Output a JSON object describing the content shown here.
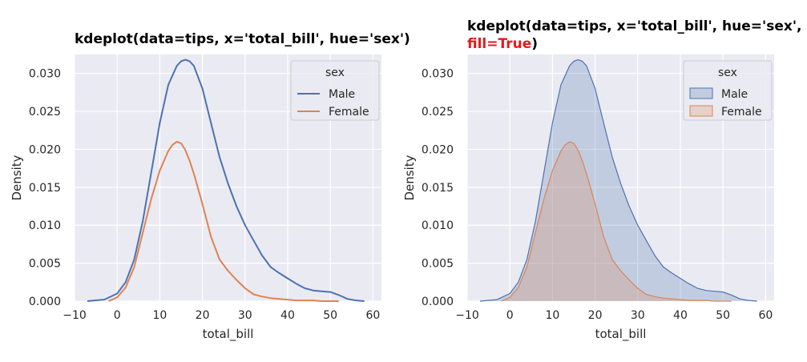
{
  "chart_data": [
    {
      "type": "line",
      "title": "kdeplot(data=tips, x='total_bill', hue='sex')",
      "title_line2_red": "",
      "xlabel": "total_bill",
      "ylabel": "Density",
      "xlim": [
        -10,
        62
      ],
      "ylim": [
        0,
        0.0325
      ],
      "xticks": [
        "−10",
        "0",
        "10",
        "20",
        "30",
        "40",
        "50",
        "60"
      ],
      "xtick_values": [
        -10,
        0,
        10,
        20,
        30,
        40,
        50,
        60
      ],
      "yticks": [
        "0.000",
        "0.005",
        "0.010",
        "0.015",
        "0.020",
        "0.025",
        "0.030"
      ],
      "ytick_values": [
        0,
        0.005,
        0.01,
        0.015,
        0.02,
        0.025,
        0.03
      ],
      "fill": false,
      "grid": true,
      "legend": {
        "title": "sex",
        "position": "top-right"
      },
      "series": [
        {
          "name": "Male",
          "color": "#4c72b0",
          "x": [
            -7,
            -3,
            0,
            2,
            4,
            6,
            8,
            10,
            12,
            14,
            15,
            16,
            17,
            18,
            20,
            22,
            24,
            26,
            28,
            30,
            32,
            34,
            36,
            38,
            40,
            42,
            44,
            46,
            48,
            50,
            52,
            54,
            56,
            58
          ],
          "y": [
            0.0,
            0.0002,
            0.001,
            0.0025,
            0.0055,
            0.0105,
            0.017,
            0.0235,
            0.0285,
            0.031,
            0.0316,
            0.0318,
            0.0316,
            0.031,
            0.028,
            0.0235,
            0.019,
            0.0155,
            0.0125,
            0.01,
            0.008,
            0.006,
            0.0045,
            0.0037,
            0.003,
            0.0023,
            0.0017,
            0.0014,
            0.0013,
            0.0012,
            0.0008,
            0.0003,
            0.0001,
            0.0
          ]
        },
        {
          "name": "Female",
          "color": "#dd8452",
          "x": [
            -2,
            0,
            2,
            4,
            6,
            8,
            10,
            12,
            13,
            14,
            15,
            16,
            17,
            18,
            20,
            22,
            24,
            26,
            28,
            30,
            32,
            34,
            36,
            38,
            40,
            42,
            44,
            46,
            48,
            50,
            52
          ],
          "y": [
            0.0,
            0.0005,
            0.0018,
            0.0045,
            0.009,
            0.0135,
            0.0172,
            0.0198,
            0.0206,
            0.021,
            0.0208,
            0.0199,
            0.0185,
            0.0168,
            0.0128,
            0.0085,
            0.0055,
            0.004,
            0.0028,
            0.0017,
            0.0009,
            0.0006,
            0.0004,
            0.0003,
            0.0002,
            0.0001,
            0.0001,
            0.0001,
            0.0,
            0.0,
            0.0
          ]
        }
      ]
    },
    {
      "type": "area",
      "title": "kdeplot(data=tips, x='total_bill', hue='sex',",
      "title_line2_red": "fill=True",
      "title_line2_close": ")",
      "xlabel": "total_bill",
      "ylabel": "Density",
      "xlim": [
        -10,
        62
      ],
      "ylim": [
        0,
        0.0325
      ],
      "xticks": [
        "−10",
        "0",
        "10",
        "20",
        "30",
        "40",
        "50",
        "60"
      ],
      "xtick_values": [
        -10,
        0,
        10,
        20,
        30,
        40,
        50,
        60
      ],
      "yticks": [
        "0.000",
        "0.005",
        "0.010",
        "0.015",
        "0.020",
        "0.025",
        "0.030"
      ],
      "ytick_values": [
        0,
        0.005,
        0.01,
        0.015,
        0.02,
        0.025,
        0.03
      ],
      "fill": true,
      "grid": true,
      "legend": {
        "title": "sex",
        "position": "top-right"
      },
      "series": [
        {
          "name": "Male",
          "color": "#4c72b0",
          "x": [
            -7,
            -3,
            0,
            2,
            4,
            6,
            8,
            10,
            12,
            14,
            15,
            16,
            17,
            18,
            20,
            22,
            24,
            26,
            28,
            30,
            32,
            34,
            36,
            38,
            40,
            42,
            44,
            46,
            48,
            50,
            52,
            54,
            56,
            58
          ],
          "y": [
            0.0,
            0.0002,
            0.001,
            0.0025,
            0.0055,
            0.0105,
            0.017,
            0.0235,
            0.0285,
            0.031,
            0.0316,
            0.0318,
            0.0316,
            0.031,
            0.028,
            0.0235,
            0.019,
            0.0155,
            0.0125,
            0.01,
            0.008,
            0.006,
            0.0045,
            0.0037,
            0.003,
            0.0023,
            0.0017,
            0.0014,
            0.0013,
            0.0012,
            0.0008,
            0.0003,
            0.0001,
            0.0
          ]
        },
        {
          "name": "Female",
          "color": "#dd8452",
          "x": [
            -2,
            0,
            2,
            4,
            6,
            8,
            10,
            12,
            13,
            14,
            15,
            16,
            17,
            18,
            20,
            22,
            24,
            26,
            28,
            30,
            32,
            34,
            36,
            38,
            40,
            42,
            44,
            46,
            48,
            50,
            52
          ],
          "y": [
            0.0,
            0.0005,
            0.0018,
            0.0045,
            0.009,
            0.0135,
            0.0172,
            0.0198,
            0.0206,
            0.021,
            0.0208,
            0.0199,
            0.0185,
            0.0168,
            0.0128,
            0.0085,
            0.0055,
            0.004,
            0.0028,
            0.0017,
            0.0009,
            0.0006,
            0.0004,
            0.0003,
            0.0002,
            0.0001,
            0.0001,
            0.0001,
            0.0,
            0.0,
            0.0
          ]
        }
      ]
    }
  ]
}
